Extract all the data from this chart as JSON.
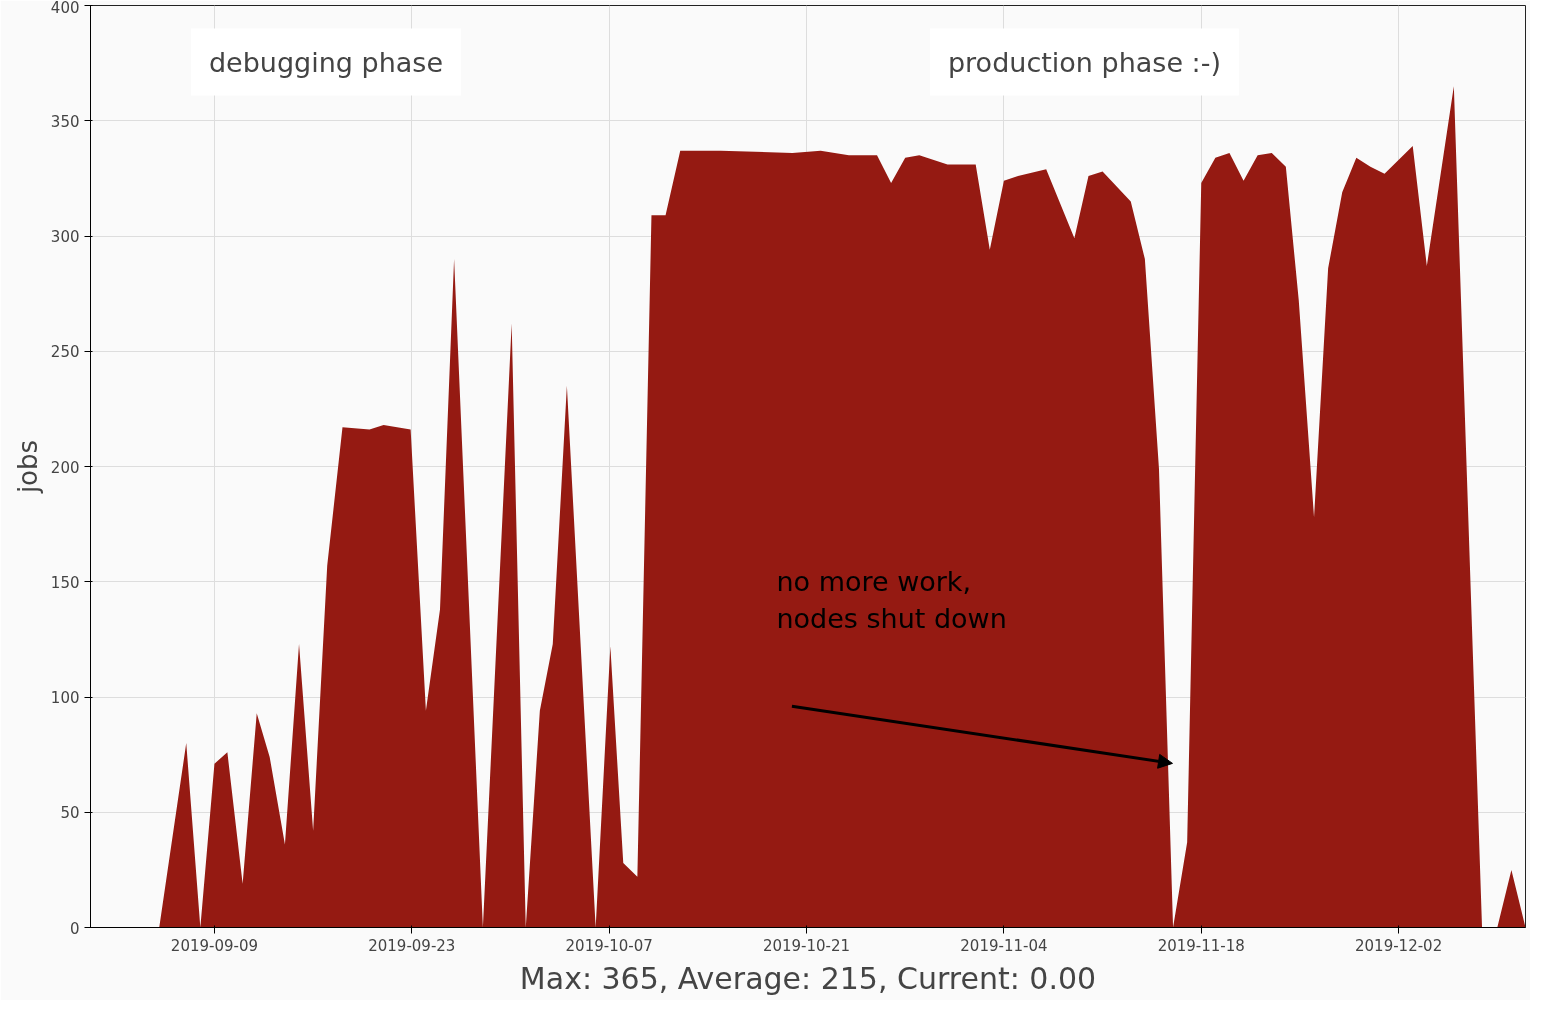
{
  "chart_data": {
    "type": "area",
    "ylabel": "jobs",
    "color": "#951a12",
    "grid": true,
    "xlim": [
      "2019-08-31T05:00",
      "2019-12-11T00:00"
    ],
    "ylim": [
      0,
      400
    ],
    "yticks": [
      0,
      50,
      100,
      150,
      200,
      250,
      300,
      350,
      400
    ],
    "xticks": [
      "2019-09-09",
      "2019-09-23",
      "2019-10-07",
      "2019-10-21",
      "2019-11-04",
      "2019-11-18",
      "2019-12-02"
    ],
    "x": [
      "2019-09-05T02:00",
      "2019-09-07",
      "2019-09-08",
      "2019-09-09",
      "2019-09-09T22:00",
      "2019-09-11",
      "2019-09-12",
      "2019-09-12T22:00",
      "2019-09-14",
      "2019-09-15",
      "2019-09-16",
      "2019-09-17",
      "2019-09-18T02:00",
      "2019-09-20",
      "2019-09-21",
      "2019-09-22T22:00",
      "2019-09-24",
      "2019-09-25",
      "2019-09-26",
      "2019-09-28T01:00",
      "2019-09-30T02:00",
      "2019-10-01T02:00",
      "2019-10-02T02:00",
      "2019-10-03",
      "2019-10-04",
      "2019-10-06T01:00",
      "2019-10-07T02:00",
      "2019-10-08",
      "2019-10-09",
      "2019-10-10",
      "2019-10-11",
      "2019-10-12T01:00",
      "2019-10-14T22:00",
      "2019-10-20",
      "2019-10-22",
      "2019-10-24",
      "2019-10-26",
      "2019-10-27",
      "2019-10-28",
      "2019-10-29",
      "2019-10-31",
      "2019-11-02",
      "2019-11-03",
      "2019-11-04",
      "2019-11-05",
      "2019-11-07",
      "2019-11-09",
      "2019-11-10",
      "2019-11-11",
      "2019-11-13",
      "2019-11-14",
      "2019-11-15",
      "2019-11-16",
      "2019-11-17",
      "2019-11-18",
      "2019-11-19",
      "2019-11-20",
      "2019-11-21",
      "2019-11-22",
      "2019-11-23",
      "2019-11-24",
      "2019-11-24T22:00",
      "2019-11-26",
      "2019-11-27",
      "2019-11-28",
      "2019-11-29",
      "2019-11-30",
      "2019-12-01",
      "2019-12-03",
      "2019-12-04",
      "2019-12-05T22:00",
      "2019-12-07T22:00",
      "2019-12-09",
      "2019-12-10",
      "2019-12-11"
    ],
    "values": [
      0,
      80,
      0,
      71,
      76,
      19,
      93,
      74,
      36,
      123,
      42,
      157,
      217,
      216,
      218,
      216,
      94,
      138,
      290,
      0,
      262,
      0,
      94,
      123,
      235,
      0,
      122,
      28,
      22,
      309,
      309,
      337,
      337,
      336,
      337,
      335,
      335,
      323,
      334,
      335,
      331,
      331,
      294,
      324,
      326,
      329,
      299,
      326,
      328,
      315,
      290,
      199,
      0,
      37,
      323,
      334,
      336,
      324,
      335,
      336,
      330,
      272,
      178,
      286,
      319,
      334,
      330,
      327,
      339,
      287,
      365,
      0,
      0,
      25,
      0
    ],
    "annotations": [
      "debugging phase",
      "production phase :-)",
      "no more work,\nnodes shut down",
      "Max: 365, Average: 215, Current: 0.00"
    ]
  }
}
